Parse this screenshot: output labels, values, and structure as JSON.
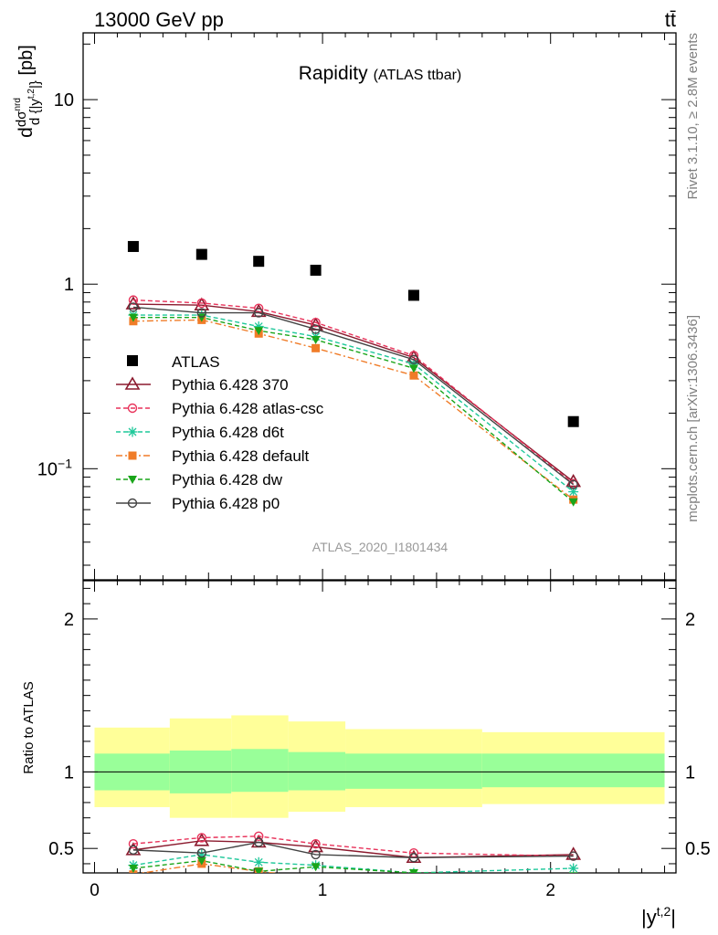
{
  "header": {
    "left": "13000 GeV pp",
    "right": "tt̄"
  },
  "side": {
    "rivet": "Rivet 3.1.10, ≥ 2.8M events",
    "mcplots": "mcplots.cern.ch [arXiv:1306.3436]"
  },
  "chart_data": {
    "type": "line",
    "title": "Rapidity",
    "subtitle": "(ATLAS ttbar)",
    "watermark": "ATLAS_2020_I1801434",
    "xlabel": "|y^{t,2}|",
    "ylabel": "dσ^{nrd} / d {|y^{t,2}|} [pb]",
    "ratio_ylabel": "Ratio to ATLAS",
    "log_y": true,
    "xlim": [
      -0.05,
      2.55
    ],
    "ylim": [
      0.025,
      23
    ],
    "ratio_ylim": [
      0.34,
      2.25
    ],
    "x_ticks": [
      "0",
      "1",
      "2"
    ],
    "y_ticks": [
      "10^-1",
      "1",
      "10"
    ],
    "ratio_ticks": [
      "0.5",
      "1",
      "2"
    ],
    "x": [
      0.17,
      0.47,
      0.72,
      0.97,
      1.4,
      2.1
    ],
    "bin_edges": [
      0.0,
      0.33,
      0.6,
      0.85,
      1.1,
      1.7,
      2.5
    ],
    "band_inner": [
      [
        0.88,
        1.12
      ],
      [
        0.86,
        1.14
      ],
      [
        0.87,
        1.15
      ],
      [
        0.88,
        1.13
      ],
      [
        0.89,
        1.12
      ],
      [
        0.9,
        1.12
      ]
    ],
    "band_outer": [
      [
        0.77,
        1.29
      ],
      [
        0.7,
        1.35
      ],
      [
        0.7,
        1.37
      ],
      [
        0.74,
        1.33
      ],
      [
        0.77,
        1.28
      ],
      [
        0.79,
        1.26
      ]
    ],
    "reference": {
      "name": "ATLAS",
      "color": "#000000",
      "marker": "square",
      "values": [
        1.6,
        1.45,
        1.33,
        1.19,
        0.87,
        0.18
      ]
    },
    "series": [
      {
        "name": "Pythia 6.428 370",
        "color": "#8b1a2e",
        "marker": "triangle-open",
        "dash": "solid",
        "values": [
          0.78,
          0.77,
          0.71,
          0.6,
          0.4,
          0.085
        ],
        "ratio": [
          0.49,
          0.55,
          0.54,
          0.51,
          0.44,
          0.46
        ]
      },
      {
        "name": "Pythia 6.428 atlas-csc",
        "color": "#e8325a",
        "marker": "circle-open",
        "dash": "dashed",
        "values": [
          0.82,
          0.79,
          0.74,
          0.62,
          0.41,
          0.083
        ],
        "ratio": [
          0.53,
          0.57,
          0.58,
          0.53,
          0.47,
          0.45
        ]
      },
      {
        "name": "Pythia 6.428 d6t",
        "color": "#1ec89a",
        "marker": "star",
        "dash": "dashed",
        "values": [
          0.68,
          0.68,
          0.59,
          0.52,
          0.37,
          0.075
        ],
        "ratio": [
          0.39,
          0.46,
          0.41,
          0.39,
          0.34,
          0.37
        ]
      },
      {
        "name": "Pythia 6.428 default",
        "color": "#f07c28",
        "marker": "square-filled",
        "dash": "dashdot",
        "values": [
          0.63,
          0.64,
          0.54,
          0.45,
          0.32,
          0.068
        ],
        "ratio": [
          0.33,
          0.4,
          0.35,
          0.31,
          0.28,
          0.3
        ]
      },
      {
        "name": "Pythia 6.428 dw",
        "color": "#1aa51a",
        "marker": "triangle-down-filled",
        "dash": "dashed",
        "values": [
          0.66,
          0.66,
          0.56,
          0.5,
          0.35,
          0.066
        ],
        "ratio": [
          0.37,
          0.42,
          0.35,
          0.38,
          0.34,
          0.32
        ]
      },
      {
        "name": "Pythia 6.428 p0",
        "color": "#444444",
        "marker": "circle-open",
        "dash": "solid",
        "values": [
          0.75,
          0.7,
          0.7,
          0.57,
          0.39,
          0.082
        ],
        "ratio": [
          0.49,
          0.47,
          0.54,
          0.46,
          0.44,
          0.45
        ]
      }
    ]
  }
}
